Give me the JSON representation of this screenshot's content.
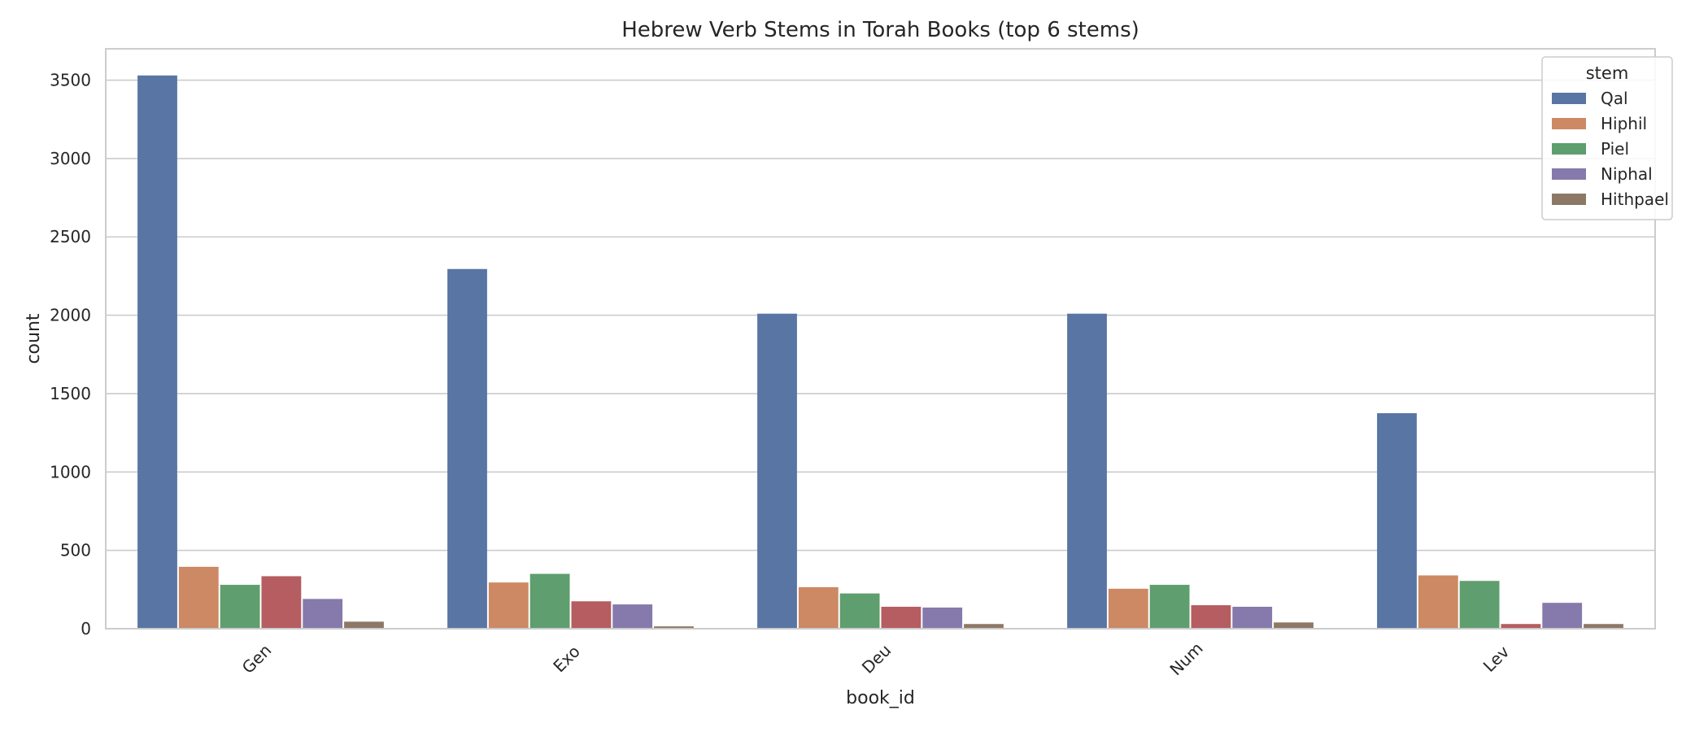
{
  "chart_data": {
    "type": "bar",
    "title": "Hebrew Verb Stems in Torah Books (top 6 stems)",
    "xlabel": "book_id",
    "ylabel": "count",
    "categories": [
      "Gen",
      "Exo",
      "Deu",
      "Num",
      "Lev"
    ],
    "ylim": [
      0,
      3700
    ],
    "yticks": [
      0,
      500,
      1000,
      1500,
      2000,
      2500,
      3000,
      3500
    ],
    "grid": true,
    "legend": {
      "title": "stem",
      "placement": "top-right"
    },
    "series": [
      {
        "name": "Qal",
        "color": "#5975a4",
        "values": [
          3530,
          2295,
          2010,
          2010,
          1375
        ]
      },
      {
        "name": "Hiphil",
        "color": "#cc8963",
        "values": [
          395,
          295,
          265,
          255,
          340
        ]
      },
      {
        "name": "Piel",
        "color": "#5f9e6e",
        "values": [
          280,
          350,
          225,
          280,
          305
        ]
      },
      {
        "name": "",
        "color": "#b55d60",
        "values": [
          335,
          175,
          140,
          150,
          30
        ]
      },
      {
        "name": "Niphal",
        "color": "#857aab",
        "values": [
          190,
          155,
          135,
          140,
          165
        ]
      },
      {
        "name": "Hithpael",
        "color": "#8d7866",
        "values": [
          45,
          15,
          30,
          40,
          30
        ]
      }
    ]
  }
}
